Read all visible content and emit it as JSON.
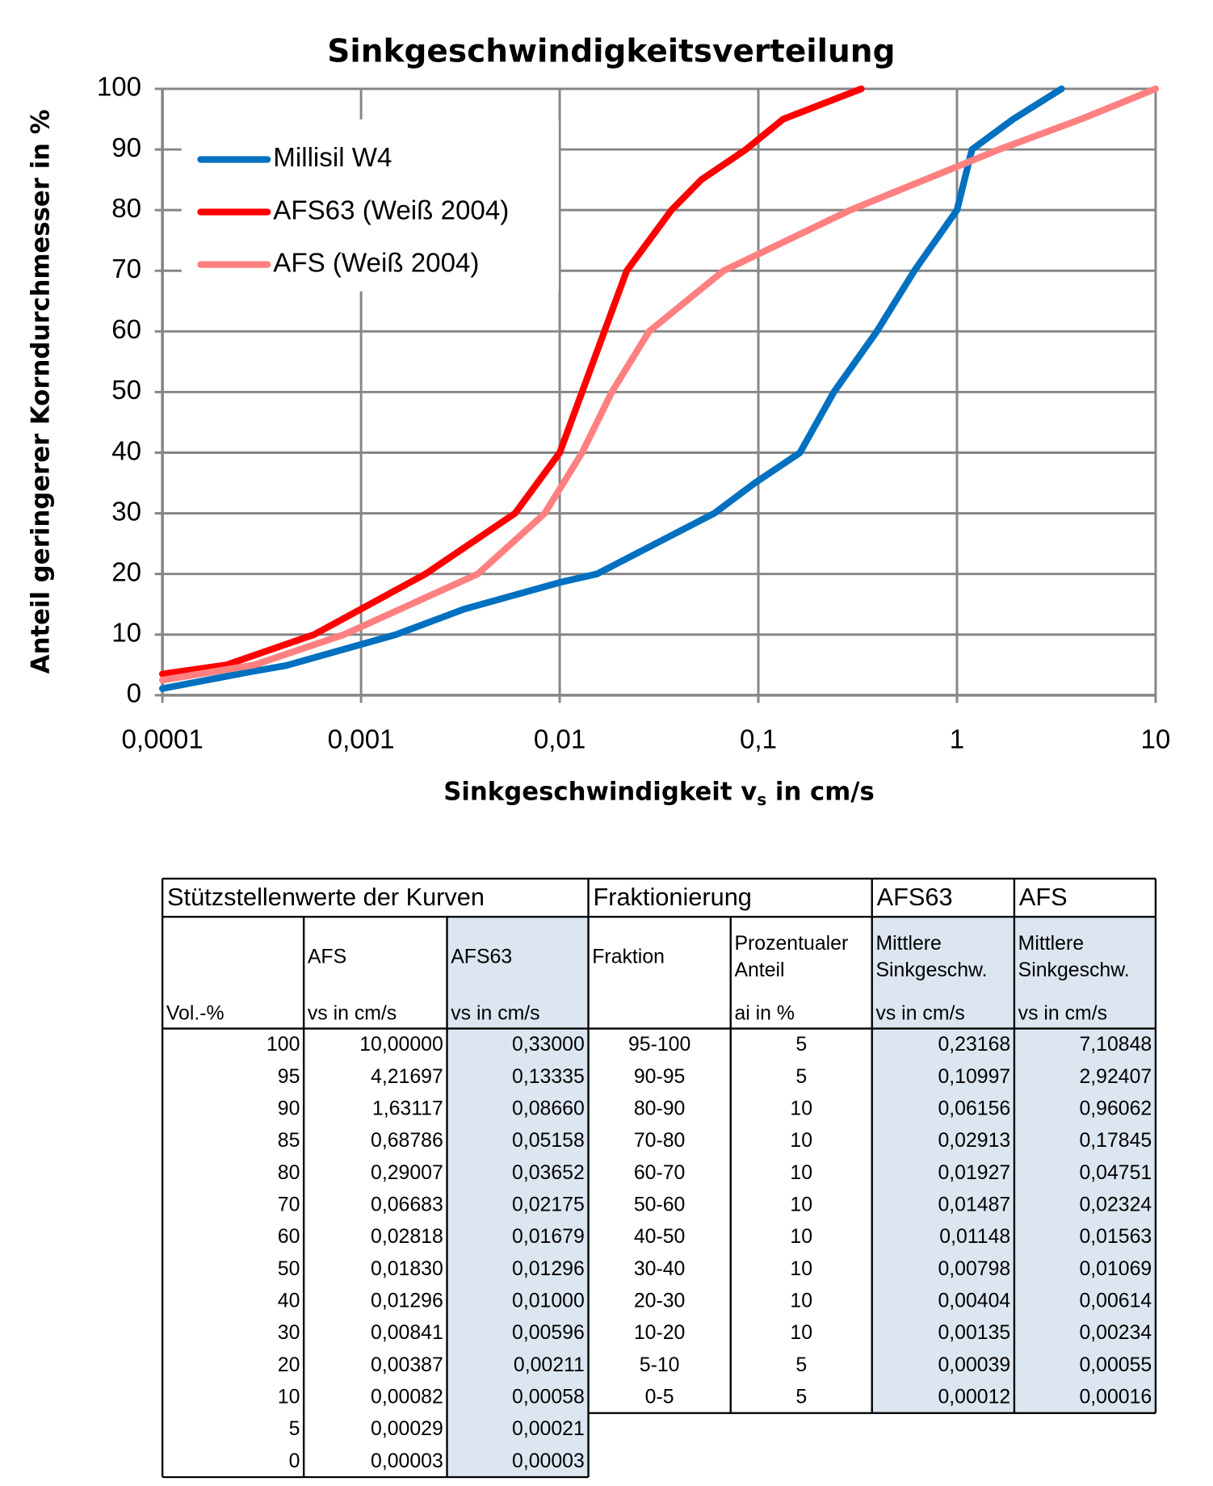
{
  "chart_data": {
    "type": "line",
    "title": "Sinkgeschwindigkeitsverteilung",
    "xlabel": "Sinkgeschwindigkeit v",
    "xlabel_sub": "s",
    "xlabel_end": " in cm/s",
    "ylabel": "Anteil geringerer Korndurchmesser in %",
    "xscale": "log",
    "xlim": [
      0.0001,
      10
    ],
    "xticks": [
      {
        "value": 0.0001,
        "label": "0,0001"
      },
      {
        "value": 0.001,
        "label": "0,001"
      },
      {
        "value": 0.01,
        "label": "0,01"
      },
      {
        "value": 0.1,
        "label": "0,1"
      },
      1,
      10
    ],
    "ylim": [
      0,
      100
    ],
    "yticks": [
      0,
      10,
      20,
      30,
      40,
      50,
      60,
      70,
      80,
      90,
      100
    ],
    "grid": true,
    "legend": "upper left",
    "series": [
      {
        "name": "Millisil W4",
        "color": "#0070c0",
        "x": [
          0.0001,
          0.00027,
          0.00042,
          0.0015,
          0.0033,
          0.01,
          0.0154,
          0.06,
          0.096,
          0.162,
          0.24,
          0.395,
          0.61,
          1,
          1.19,
          1.92,
          3.36
        ],
        "values": [
          1.1,
          3.8,
          4.9,
          10,
          14.2,
          18.6,
          20,
          30,
          35,
          40,
          50,
          60,
          70,
          80,
          90,
          95,
          100
        ]
      },
      {
        "name": "AFS63 (Weiß 2004)",
        "color": "#ff0000",
        "x": [
          0.0001,
          0.00021,
          0.00058,
          0.00211,
          0.00596,
          0.01,
          0.01296,
          0.01679,
          0.02175,
          0.03652,
          0.05158,
          0.0866,
          0.13335,
          0.33
        ],
        "values": [
          3.5,
          5,
          10,
          20,
          30,
          40,
          50,
          60,
          70,
          80,
          85,
          90,
          95,
          100
        ]
      },
      {
        "name": "AFS (Weiß 2004)",
        "color": "#ff8080",
        "x": [
          0.0001,
          0.00029,
          0.00082,
          0.00387,
          0.00841,
          0.01296,
          0.0183,
          0.02818,
          0.06683,
          0.29007,
          0.68786,
          1.63117,
          4.21697,
          10
        ],
        "values": [
          2.5,
          5,
          10,
          20,
          30,
          40,
          50,
          60,
          70,
          80,
          85,
          90,
          95,
          100
        ]
      }
    ]
  },
  "table": {
    "groups": [
      "Stützstellenwerte der Kurven",
      "Fraktionierung",
      "AFS63",
      "AFS"
    ],
    "header": [
      {
        "bottom": "Vol.-%"
      },
      {
        "top": [
          "AFS"
        ],
        "bottom": "vs in cm/s"
      },
      {
        "top": [
          "AFS63"
        ],
        "bottom": "vs in cm/s"
      },
      {
        "top": [
          "Fraktion"
        ]
      },
      {
        "top": [
          "Prozentualer",
          "Anteil"
        ],
        "bottom": "ai in %"
      },
      {
        "top": [
          "Mittlere",
          "Sinkgeschw."
        ],
        "bottom": "vs in cm/s"
      },
      {
        "top": [
          "Mittlere",
          "Sinkgeschw."
        ],
        "bottom": "vs in cm/s"
      }
    ],
    "rows": [
      [
        "100",
        "10,00000",
        "0,33000",
        "95-100",
        "5",
        "0,23168",
        "7,10848"
      ],
      [
        "95",
        "4,21697",
        "0,13335",
        "90-95",
        "5",
        "0,10997",
        "2,92407"
      ],
      [
        "90",
        "1,63117",
        "0,08660",
        "80-90",
        "10",
        "0,06156",
        "0,96062"
      ],
      [
        "85",
        "0,68786",
        "0,05158",
        "70-80",
        "10",
        "0,02913",
        "0,17845"
      ],
      [
        "80",
        "0,29007",
        "0,03652",
        "60-70",
        "10",
        "0,01927",
        "0,04751"
      ],
      [
        "70",
        "0,06683",
        "0,02175",
        "50-60",
        "10",
        "0,01487",
        "0,02324"
      ],
      [
        "60",
        "0,02818",
        "0,01679",
        "40-50",
        "10",
        "0,01148",
        "0,01563"
      ],
      [
        "50",
        "0,01830",
        "0,01296",
        "30-40",
        "10",
        "0,00798",
        "0,01069"
      ],
      [
        "40",
        "0,01296",
        "0,01000",
        "20-30",
        "10",
        "0,00404",
        "0,00614"
      ],
      [
        "30",
        "0,00841",
        "0,00596",
        "10-20",
        "10",
        "0,00135",
        "0,00234"
      ],
      [
        "20",
        "0,00387",
        "0,00211",
        "5-10",
        "5",
        "0,00039",
        "0,00055"
      ],
      [
        "10",
        "0,00082",
        "0,00058",
        "0-5",
        "5",
        "0,00012",
        "0,00016"
      ],
      [
        "5",
        "0,00029",
        "0,00021"
      ],
      [
        "0",
        "0,00003",
        "0,00003"
      ]
    ]
  }
}
